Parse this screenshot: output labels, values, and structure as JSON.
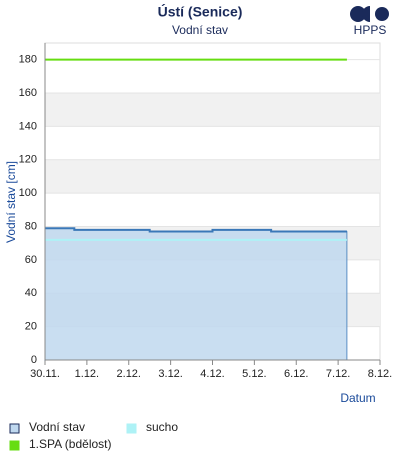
{
  "logo": "HPPS",
  "chart_data": {
    "type": "line",
    "title": "Ústí (Senice)",
    "subtitle": "Vodní stav",
    "y_label": "Vodní stav [cm]",
    "x_label": "Datum",
    "xlim": [
      0,
      8
    ],
    "xticks": [
      {
        "value": 0,
        "label": "30.11."
      },
      {
        "value": 1,
        "label": "1.12."
      },
      {
        "value": 2,
        "label": "2.12."
      },
      {
        "value": 3,
        "label": "3.12."
      },
      {
        "value": 4,
        "label": "4.12."
      },
      {
        "value": 5,
        "label": "5.12."
      },
      {
        "value": 6,
        "label": "6.12."
      },
      {
        "value": 7,
        "label": "7.12."
      },
      {
        "value": 8,
        "label": "8.12."
      }
    ],
    "ylim": [
      0,
      190
    ],
    "yticks": [
      0,
      20,
      40,
      60,
      80,
      100,
      120,
      140,
      160,
      180
    ],
    "bands": true,
    "series": [
      {
        "name": "Vodní stav",
        "color": "#3a78b8",
        "fill": "#bfd8ef",
        "x": [
          0,
          0.7,
          0.7,
          2.5,
          2.5,
          4.0,
          4.0,
          5.4,
          5.4,
          7.21
        ],
        "values": [
          79,
          79,
          78,
          78,
          77,
          77,
          78,
          78,
          77,
          77
        ]
      },
      {
        "name": "sucho",
        "color": "#aef2f6",
        "x": [
          0,
          7.21
        ],
        "values": [
          72,
          72
        ]
      },
      {
        "name": "1.SPA (bdělost)",
        "color": "#66dd11",
        "x": [
          0,
          7.21
        ],
        "values": [
          180,
          180
        ]
      }
    ]
  }
}
